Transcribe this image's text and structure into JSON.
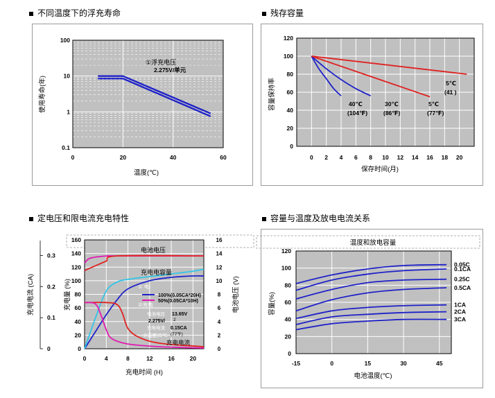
{
  "headings": {
    "top_left": "不同温度下的浮充寿命",
    "top_right": "残存容量",
    "bottom_left": "定电压和限电流充电特性",
    "bottom_right": "容量与温度及放电电流关系"
  },
  "colors": {
    "plot_bg": "#c0c0c0",
    "grid": "#ffffff",
    "blue": "#1f22c8",
    "red": "#e02020",
    "magenta": "#e01ab0",
    "cyan": "#33c4e6"
  },
  "chart_data": [
    {
      "id": "float_life",
      "type": "line",
      "title": "不同温度下的浮充寿命",
      "xlabel": "温度(℃)",
      "ylabel": "使用寿命(年)",
      "xlim": [
        0,
        60
      ],
      "ylim": [
        0.1,
        100
      ],
      "yscale": "log",
      "x_ticks": [
        "0",
        "20",
        "40",
        "60"
      ],
      "y_ticks": [
        "0.1",
        "1",
        "10",
        "100"
      ],
      "annotation": [
        "①浮充电压",
        "2.275V/单元"
      ],
      "series": [
        {
          "name": "upper",
          "x": [
            10,
            15,
            20,
            55
          ],
          "y": [
            10,
            10,
            10,
            0.9
          ]
        },
        {
          "name": "lower",
          "x": [
            10,
            15,
            20,
            55
          ],
          "y": [
            8.5,
            8.5,
            8.5,
            0.75
          ]
        }
      ]
    },
    {
      "id": "residual_capacity",
      "type": "line",
      "title": "残存容量",
      "xlabel": "保存时间(月)",
      "ylabel": "容量保持率",
      "xlim": [
        -2,
        22
      ],
      "ylim": [
        0,
        120
      ],
      "x_ticks": [
        "0",
        "2",
        "4",
        "6",
        "8",
        "10",
        "12",
        "14",
        "16",
        "18",
        "20"
      ],
      "y_ticks": [
        "0",
        "20",
        "40",
        "60",
        "80",
        "100",
        "120"
      ],
      "series": [
        {
          "name": "40℃ (104℉)",
          "color": "blue",
          "x": [
            0,
            1,
            2,
            3,
            4
          ],
          "y": [
            100,
            86,
            75,
            64,
            56
          ]
        },
        {
          "name": "30℃ (86℉)",
          "color": "blue",
          "x": [
            0,
            2,
            4,
            6,
            8
          ],
          "y": [
            100,
            86,
            74,
            64,
            56
          ]
        },
        {
          "name": "5℃ (77℉)",
          "color": "red",
          "x": [
            0,
            16
          ],
          "y": [
            100,
            55
          ]
        },
        {
          "name": "5℃ (41℉)",
          "color": "red",
          "x": [
            0,
            21
          ],
          "y": [
            100,
            80
          ]
        }
      ],
      "labels": [
        {
          "l1": "40℃",
          "l2": "(104℉)"
        },
        {
          "l1": "30℃",
          "l2": "(86℉)"
        },
        {
          "l1": "5℃",
          "l2": "(77℉)"
        },
        {
          "l1": "5℃",
          "l2": "(41   )"
        }
      ]
    },
    {
      "id": "charge_characteristics",
      "type": "line",
      "title": "定电压和限电流充电特性",
      "xlabel": "充电时间 (H)",
      "ylabel_outer": "充电电流 (CA)",
      "ylabel_inner": "充电量 (%)",
      "ylabel_right": "电池电压 (V)",
      "xlim": [
        0,
        22
      ],
      "ylim_left": [
        0,
        160
      ],
      "ylim_right": [
        0,
        16
      ],
      "ylim_current": [
        0,
        0.35
      ],
      "x_ticks": [
        "0",
        "4",
        "8",
        "12",
        "16",
        "20"
      ],
      "y_ticks_left": [
        "0",
        "20",
        "40",
        "60",
        "80",
        "100",
        "120",
        "140",
        "160"
      ],
      "y_ticks_right": [
        "0",
        "2",
        "4",
        "6",
        "8",
        "10",
        "12",
        "14",
        "16"
      ],
      "y_ticks_current": [
        "0",
        "0.1",
        "0.2",
        "0.3"
      ],
      "labels": {
        "battery_voltage": "电池电压",
        "charge_amount": "充电电容量",
        "charge_current": "充电电流",
        "legend1": "100%(0.05CA*20H)",
        "legend2": "50%(0.05CA*10H)",
        "cond_no": "①  电",
        "cond_no2": "②充电",
        "cond_v_label": "电池电压",
        "cond_v": "13.65V",
        "cond_v2": "2.275V/",
        "cond_v2b": "2",
        "cond_i_label": "充电电流",
        "cond_i": "0.15CA",
        "cond_t": "③温度25℃",
        "cond_t2": "(77℉)"
      },
      "series": [
        {
          "name": "voltage_100",
          "color": "magenta",
          "x": [
            0,
            1,
            4,
            6,
            22
          ],
          "y_right": [
            12.6,
            13.3,
            13.65,
            13.65,
            13.65
          ]
        },
        {
          "name": "voltage_50",
          "color": "red",
          "x": [
            0,
            2,
            4,
            6,
            22
          ],
          "y_right": [
            11.5,
            12.2,
            12.9,
            13.65,
            13.65
          ]
        },
        {
          "name": "capacity_100",
          "color": "blue",
          "x": [
            0,
            2,
            4,
            6,
            8,
            12,
            16,
            20,
            22
          ],
          "y": [
            0,
            25,
            50,
            72,
            88,
            100,
            105,
            107,
            107
          ]
        },
        {
          "name": "capacity_50",
          "color": "cyan",
          "x": [
            0,
            2,
            4,
            6,
            8,
            12,
            16,
            20,
            22
          ],
          "y": [
            0,
            45,
            85,
            98,
            102,
            106,
            110,
            114,
            117
          ]
        },
        {
          "name": "current_100",
          "color": "red",
          "x": [
            0,
            4,
            6,
            7,
            8,
            10,
            14,
            22
          ],
          "y": [
            68,
            68,
            65,
            52,
            30,
            17,
            8,
            3
          ]
        },
        {
          "name": "current_50",
          "color": "magenta",
          "x": [
            0,
            2,
            3,
            4,
            5,
            8,
            14,
            22
          ],
          "y": [
            68,
            66,
            50,
            28,
            15,
            7,
            3,
            1
          ]
        }
      ]
    },
    {
      "id": "capacity_temperature",
      "type": "line",
      "title": "容量与温度及放电电流关系",
      "subtitle": "温度和放电容量",
      "xlabel": "电池温度(℃)",
      "ylabel": "容量(%)",
      "xlim": [
        -15,
        50
      ],
      "ylim": [
        0,
        120
      ],
      "x_ticks": [
        "-15",
        "0",
        "15",
        "30",
        "45"
      ],
      "y_ticks": [
        "0",
        "20",
        "40",
        "60",
        "80",
        "100",
        "120"
      ],
      "series": [
        {
          "name": "0.05C",
          "x": [
            -15,
            0,
            15,
            30,
            48
          ],
          "y": [
            82,
            92,
            99,
            103,
            104
          ]
        },
        {
          "name": "0.1CA",
          "x": [
            -15,
            0,
            15,
            30,
            48
          ],
          "y": [
            74,
            86,
            93,
            97,
            99
          ]
        },
        {
          "name": "0.25C",
          "x": [
            -15,
            0,
            15,
            30,
            48
          ],
          "y": [
            64,
            75,
            83,
            86,
            87
          ]
        },
        {
          "name": "0.5CA",
          "x": [
            -15,
            0,
            15,
            30,
            48
          ],
          "y": [
            50,
            63,
            71,
            75,
            77
          ]
        },
        {
          "name": "1CA",
          "x": [
            -15,
            0,
            15,
            30,
            48
          ],
          "y": [
            41,
            50,
            54,
            56,
            57
          ]
        },
        {
          "name": "2CA",
          "x": [
            -15,
            0,
            15,
            30,
            48
          ],
          "y": [
            34,
            43,
            46,
            48,
            49
          ]
        },
        {
          "name": "3CA",
          "x": [
            -15,
            0,
            15,
            30,
            48
          ],
          "y": [
            28,
            35,
            38,
            40,
            40
          ]
        }
      ]
    }
  ]
}
